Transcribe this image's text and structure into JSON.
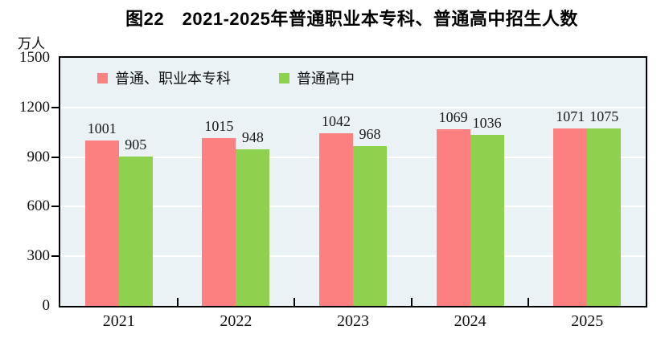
{
  "title": "图22　2021-2025年普通职业本专科、普通高中招生人数",
  "y_axis": {
    "unit": "万人"
  },
  "chart_data": {
    "type": "bar",
    "title": "图22　2021-2025年普通职业本专科、普通高中招生人数",
    "ylabel": "万人",
    "categories": [
      "2021",
      "2022",
      "2023",
      "2024",
      "2025"
    ],
    "series": [
      {
        "name": "普通、职业本专科",
        "color": "#FC8080",
        "values": [
          1001,
          1015,
          1042,
          1069,
          1071
        ]
      },
      {
        "name": "普通高中",
        "color": "#8DD14E",
        "values": [
          905,
          948,
          968,
          1036,
          1075
        ]
      }
    ],
    "ylim": [
      0,
      1500
    ],
    "yticks": [
      0,
      300,
      600,
      900,
      1200,
      1500
    ],
    "grid": true,
    "gridline_color": "#FFFFFF",
    "plot_bg": "#EAF2F6",
    "legend_position": "top-inside"
  }
}
